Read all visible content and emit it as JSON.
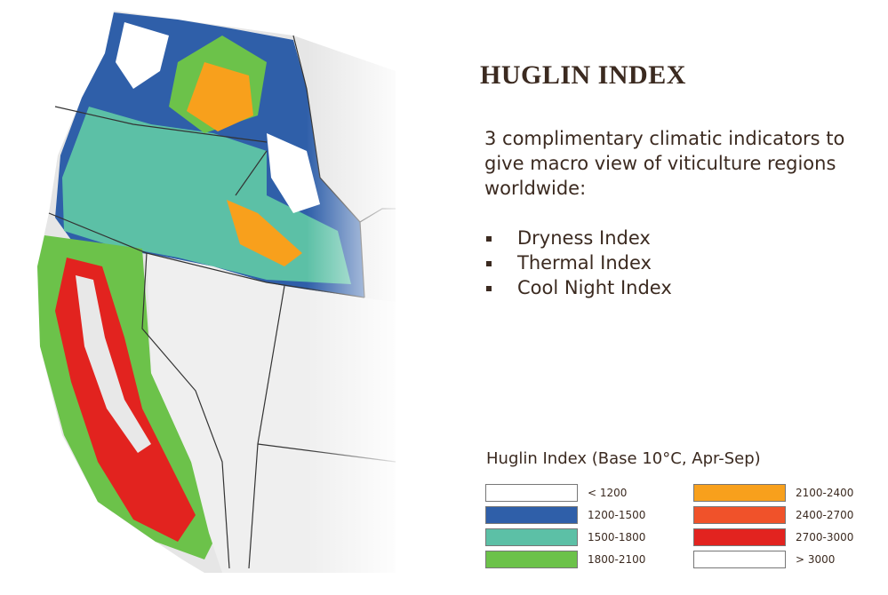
{
  "title": "HUGLIN INDEX",
  "intro": "3 complimentary climatic indicators to give macro view of viticulture regions worldwide:",
  "bullets": [
    "Dryness Index",
    "Thermal Index",
    "Cool Night Index"
  ],
  "legend": {
    "title": "Huglin Index (Base 10°C, Apr-Sep)",
    "items": [
      {
        "label": "< 1200",
        "color": "#ffffff"
      },
      {
        "label": "1200-1500",
        "color": "#2f5fa9"
      },
      {
        "label": "1500-1800",
        "color": "#5cc0a6"
      },
      {
        "label": "1800-2100",
        "color": "#6cc24a"
      },
      {
        "label": "2100-2400",
        "color": "#f8a01c"
      },
      {
        "label": "2400-2700",
        "color": "#f0522a"
      },
      {
        "label": "2700-3000",
        "color": "#e2231f"
      },
      {
        "label": "> 3000",
        "color": "#ffffff"
      }
    ]
  }
}
